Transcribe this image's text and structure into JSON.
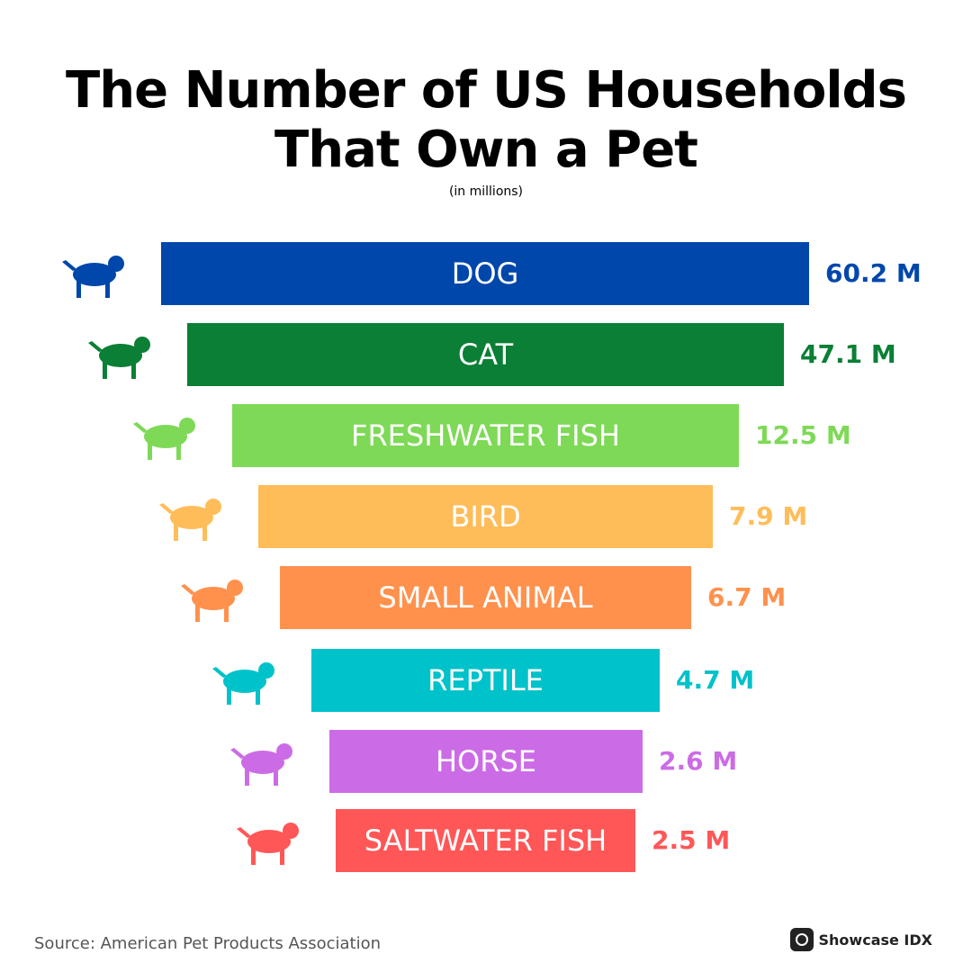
{
  "header": {
    "title_line1": "The Number of US Households",
    "title_line2": "That Own a Pet",
    "subtitle": "(in millions)"
  },
  "items": [
    {
      "name": "DOG",
      "value": "60.2 M",
      "color": "#0047ab"
    },
    {
      "name": "CAT",
      "value": "47.1 M",
      "color": "#0a7f35"
    },
    {
      "name": "FRESHWATER FISH",
      "value": "12.5 M",
      "color": "#7ed957"
    },
    {
      "name": "BIRD",
      "value": "7.9 M",
      "color": "#ffbd59"
    },
    {
      "name": "SMALL ANIMAL",
      "value": "6.7 M",
      "color": "#ff914d"
    },
    {
      "name": "REPTILE",
      "value": "4.7 M",
      "color": "#00c2cb"
    },
    {
      "name": "HORSE",
      "value": "2.6 M",
      "color": "#cb6ce6"
    },
    {
      "name": "SALTWATER FISH",
      "value": "2.5 M",
      "color": "#ff5757"
    }
  ],
  "footer": {
    "source": "Source: American Pet Products Association",
    "brand": "Showcase IDX"
  }
}
